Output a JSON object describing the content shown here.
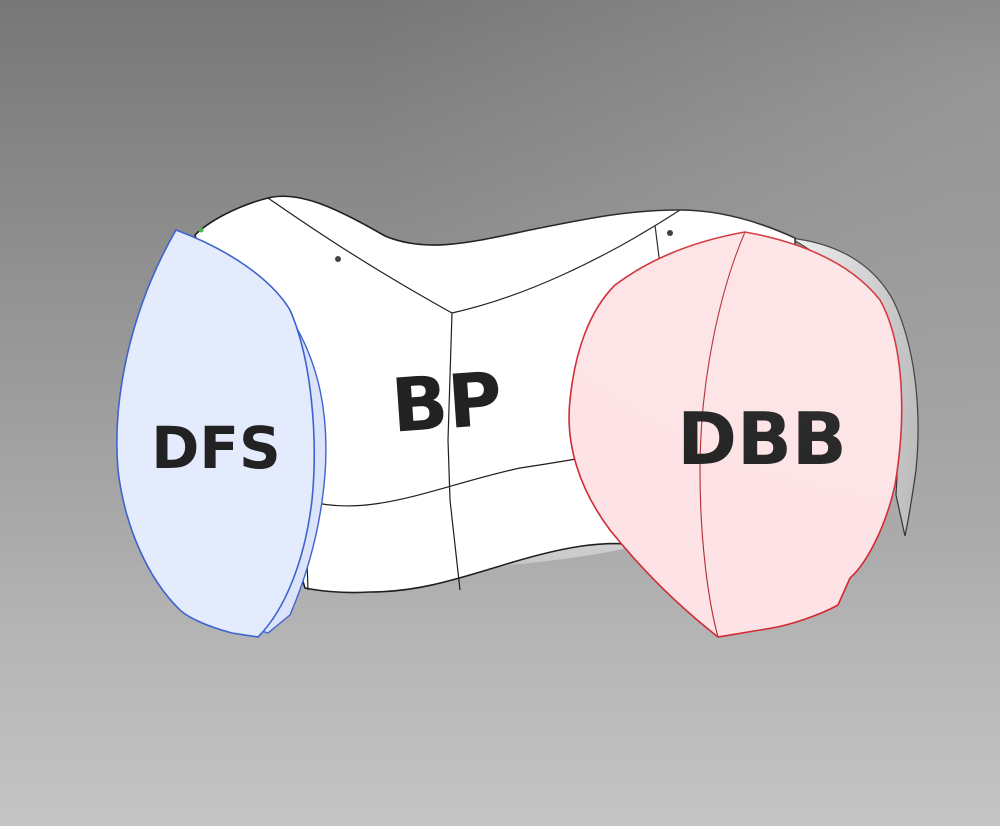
{
  "labels": {
    "left_leaflet": "DFS",
    "center_body": "BP",
    "right_leaflet": "DBB"
  },
  "colors": {
    "left_fill": "#e3ebfc",
    "left_stroke": "#3e63cf",
    "right_fill": "#fde3e5",
    "right_stroke": "#d22a33",
    "body_fill": "#ffffff",
    "body_stroke": "#1f1f1f"
  }
}
